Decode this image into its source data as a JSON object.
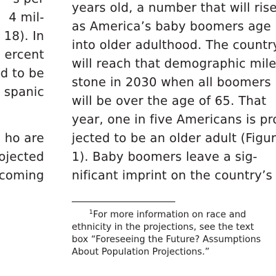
{
  "left_column": {
    "lines": [
      "s per",
      "4 mil-",
      "18). In",
      "ercent",
      "d to be",
      "spanic",
      "",
      "ho are",
      "ojected",
      "coming"
    ]
  },
  "right_column": {
    "lines": [
      "years old, a number that will rise",
      "as America’s baby boomers age",
      "into older adulthood. The country",
      "will reach that demographic mile-",
      "stone in 2030 when all boomers",
      "will be over the age of 65. That",
      "year, one in five Americans is pro-",
      "jected to be an older adult (Figure",
      "1). Baby boomers leave a sig-",
      "nificant imprint on the country’s"
    ]
  },
  "footnote": {
    "marker": "1",
    "lines": [
      "For more information on race and",
      "ethnicity in the projections, see the text",
      "box “Foreseeing the Future? Assumptions",
      "About Population Projections.”"
    ]
  }
}
